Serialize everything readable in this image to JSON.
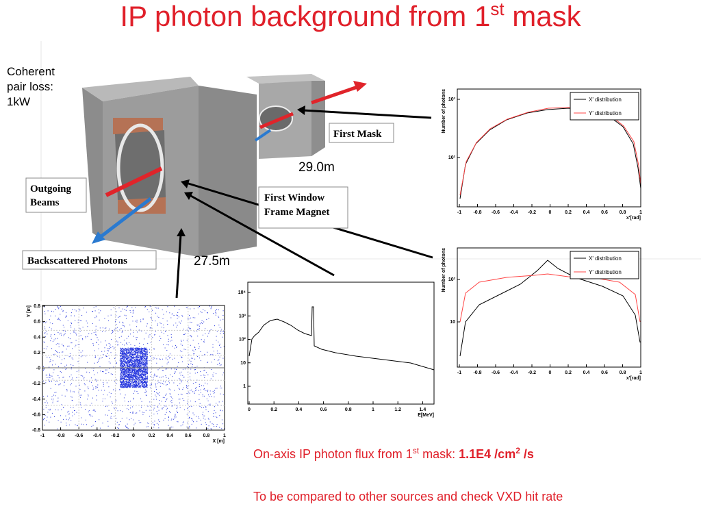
{
  "title": {
    "text": "IP photon background from 1",
    "sup": "st",
    "tail": " mask"
  },
  "diagram": {
    "coherent": [
      "Coherent",
      "pair loss:",
      "1kW"
    ],
    "first_mask": "First Mask",
    "outgoing_beams": [
      "Outgoing",
      "Beams"
    ],
    "first_window": [
      "First Window",
      "Frame Magnet"
    ],
    "backscattered": "Backscattered Photons",
    "distance_mask": "29.0m",
    "distance_window": "27.5m"
  },
  "plot_top": {
    "y_label": "Number of photons",
    "legend": [
      "X' distribution",
      "Y' distribution"
    ],
    "yticks": [
      "10³",
      "10²"
    ],
    "xticks": [
      "-1",
      "-0.8",
      "-0.6",
      "-0.4",
      "-0.2",
      "0",
      "0.2",
      "0.4",
      "0.6",
      "0.8",
      "1"
    ],
    "x_label": "x'[rad]"
  },
  "plot_bottom": {
    "y_label": "Number of photons",
    "legend": [
      "X' distribution",
      "Y' distribution"
    ],
    "yticks": [
      "10²",
      "10"
    ],
    "xticks": [
      "-1",
      "-0.8",
      "-0.6",
      "-0.4",
      "-0.2",
      "0",
      "0.2",
      "0.4",
      "0.6",
      "0.8",
      "1"
    ],
    "x_label": "x'[rad]"
  },
  "plot_energy": {
    "yticks": [
      "10⁴",
      "10³",
      "10²",
      "10",
      "1"
    ],
    "xticks": [
      "0",
      "0.2",
      "0.4",
      "0.6",
      "0.8",
      "1",
      "1.2",
      "1.4"
    ],
    "x_label": "E[MeV]"
  },
  "plot_xy": {
    "y_label": "Y [m]",
    "yticks": [
      "0.8",
      "0.6",
      "0.4",
      "0.2",
      "-0",
      "-0.2",
      "-0.4",
      "-0.6",
      "-0.8"
    ],
    "xticks": [
      "-1",
      "-0.8",
      "-0.6",
      "-0.4",
      "-0.2",
      "0",
      "0.2",
      "0.4",
      "0.6",
      "0.8",
      "1"
    ],
    "x_label": "X [m]"
  },
  "footer": {
    "flux": {
      "text": "On-axis IP photon flux from 1",
      "sup": "st",
      "mid": " mask: ",
      "value": "1.1E4 /cm",
      "sup2": "2",
      "unit": " /s"
    },
    "note": "To be compared to other sources and check VXD hit rate"
  }
}
